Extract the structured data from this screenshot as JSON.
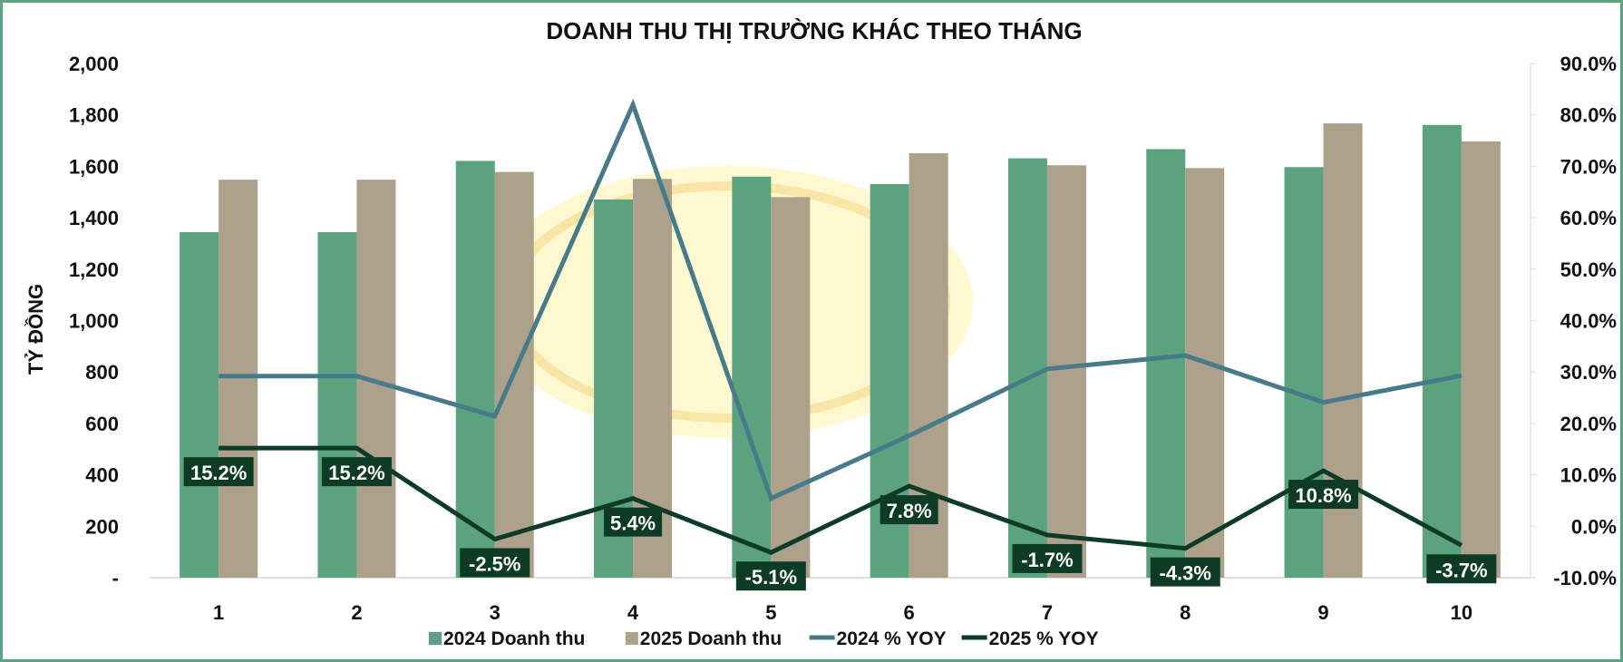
{
  "chart_data": {
    "type": "bar+line",
    "title": "DOANH THU THỊ TRƯỜNG KHÁC THEO THÁNG",
    "ylabel": "TỶ ĐỒNG",
    "xlabel": "",
    "categories": [
      "1",
      "2",
      "3",
      "4",
      "5",
      "6",
      "7",
      "8",
      "9",
      "10"
    ],
    "ylim": [
      0,
      2000
    ],
    "yticks": [
      0,
      200,
      400,
      600,
      800,
      1000,
      1200,
      1400,
      1600,
      1800,
      2000
    ],
    "ytick_labels": [
      "-",
      "200",
      "400",
      "600",
      "800",
      "1,000",
      "1,200",
      "1,400",
      "1,600",
      "1,800",
      "2,000"
    ],
    "y2lim": [
      -10,
      90
    ],
    "y2ticks": [
      -10,
      0,
      10,
      20,
      30,
      40,
      50,
      60,
      70,
      80,
      90
    ],
    "y2tick_labels": [
      "-10.0%",
      "0.0%",
      "10.0%",
      "20.0%",
      "30.0%",
      "40.0%",
      "50.0%",
      "60.0%",
      "70.0%",
      "80.0%",
      "90.0%"
    ],
    "grid": false,
    "legend_placement": "bottom",
    "series": [
      {
        "name": "2024 Doanh thu",
        "kind": "bar",
        "axis": "left",
        "color": "#5ba37f",
        "values": [
          1344,
          1344,
          1621,
          1471,
          1560,
          1531,
          1631,
          1667,
          1597,
          1761
        ]
      },
      {
        "name": "2025 Doanh thu",
        "kind": "bar",
        "axis": "left",
        "color": "#ada18c",
        "values": [
          1548,
          1548,
          1578,
          1551,
          1480,
          1651,
          1604,
          1593,
          1767,
          1697
        ]
      },
      {
        "name": "2024 % YOY",
        "kind": "line",
        "axis": "right",
        "color": "#477b8a",
        "values": [
          29.2,
          29.2,
          21.4,
          82.0,
          5.4,
          17.6,
          30.6,
          33.2,
          24.1,
          29.3
        ]
      },
      {
        "name": "2025 % YOY",
        "kind": "line",
        "axis": "right",
        "color": "#0e3b26",
        "values": [
          15.2,
          15.2,
          -2.5,
          5.4,
          -5.1,
          7.8,
          -1.7,
          -4.3,
          10.8,
          -3.7
        ],
        "data_labels": [
          "15.2%",
          "15.2%",
          "-2.5%",
          "5.4%",
          "-5.1%",
          "7.8%",
          "-1.7%",
          "-4.3%",
          "10.8%",
          "-3.7%"
        ]
      }
    ]
  }
}
